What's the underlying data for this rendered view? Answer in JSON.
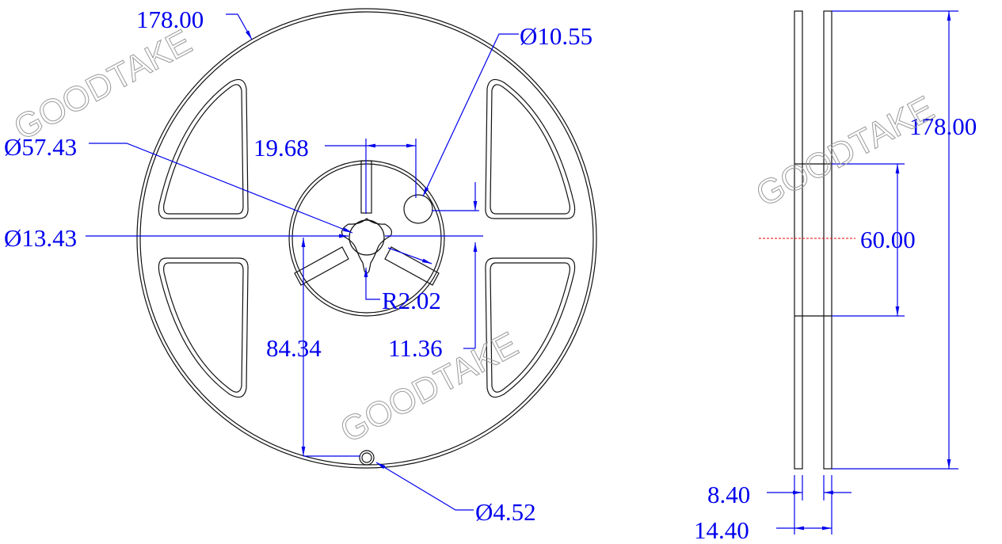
{
  "front_view": {
    "outer_diameter": "178.00",
    "hole_diameter": "Ø10.55",
    "hub_diameter": "Ø57.43",
    "slot_offset": "19.68",
    "arbor_diameter": "Ø13.43",
    "key_radius": "R2.02",
    "hole_distance": "84.34",
    "hole_offset": "11.36",
    "small_hole_diameter": "Ø4.52"
  },
  "side_view": {
    "height": "178.00",
    "hub_height": "60.00",
    "inner_width": "8.40",
    "outer_width": "14.40"
  },
  "watermark": "GOODTAKE"
}
